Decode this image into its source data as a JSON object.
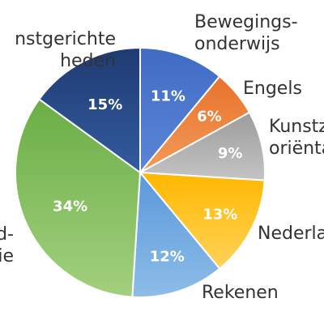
{
  "chart_data": {
    "type": "pie",
    "title": "",
    "slices": [
      {
        "lines": [
          "Bewegings-",
          "onderwijs"
        ],
        "value": 11,
        "value_label": "11%",
        "color": "#4472C4"
      },
      {
        "lines": [
          "Engels"
        ],
        "value": 6,
        "value_label": "6%",
        "color": "#ED7D31"
      },
      {
        "lines": [
          "Kunstz",
          "oriënta"
        ],
        "value": 9,
        "value_label": "9%",
        "color": "#A5A5A5"
      },
      {
        "lines": [
          "Nederla"
        ],
        "value": 13,
        "value_label": "13%",
        "color": "#FFC000"
      },
      {
        "lines": [
          "Rekenen"
        ],
        "value": 12,
        "value_label": "12%",
        "color": "#5B9BD5"
      },
      {
        "lines": [
          "d-",
          "tatie"
        ],
        "value": 34,
        "value_label": "34%",
        "color": "#70AD47"
      },
      {
        "lines": [
          "nstgerichte",
          "heden"
        ],
        "value": 15,
        "value_label": "15%",
        "color": "#264478"
      }
    ]
  }
}
